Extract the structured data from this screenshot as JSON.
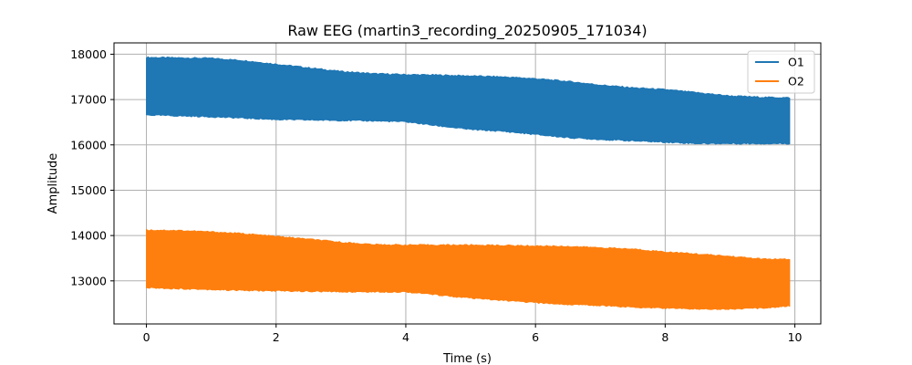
{
  "chart_data": {
    "type": "area",
    "title": "Raw EEG (martin3_recording_20250905_171034)",
    "xlabel": "Time (s)",
    "ylabel": "Amplitude",
    "xlim": [
      -0.5,
      10.4
    ],
    "ylim": [
      12050,
      18250
    ],
    "xticks": [
      0,
      2,
      4,
      6,
      8,
      10
    ],
    "yticks": [
      13000,
      14000,
      15000,
      16000,
      17000,
      18000
    ],
    "grid": true,
    "legend_position": "top-right",
    "series": [
      {
        "name": "O1",
        "color": "#1f77b4",
        "x": [
          0,
          0.5,
          1,
          1.5,
          2,
          2.5,
          3,
          3.5,
          4,
          4.5,
          5,
          5.5,
          6,
          6.5,
          7,
          7.5,
          8,
          8.5,
          9,
          9.5,
          9.92
        ],
        "upper": [
          17930,
          17920,
          17910,
          17860,
          17780,
          17700,
          17620,
          17570,
          17550,
          17540,
          17520,
          17500,
          17460,
          17400,
          17320,
          17260,
          17220,
          17150,
          17080,
          17050,
          17040
        ],
        "lower": [
          16660,
          16640,
          16620,
          16590,
          16560,
          16550,
          16540,
          16530,
          16510,
          16420,
          16340,
          16300,
          16230,
          16160,
          16120,
          16090,
          16060,
          16030,
          16030,
          16030,
          16030
        ]
      },
      {
        "name": "O2",
        "color": "#ff7f0e",
        "x": [
          0,
          0.5,
          1,
          1.5,
          2,
          2.5,
          3,
          3.5,
          4,
          4.5,
          5,
          5.5,
          6,
          6.5,
          7,
          7.5,
          8,
          8.5,
          9,
          9.5,
          9.92
        ],
        "upper": [
          14120,
          14110,
          14080,
          14040,
          13980,
          13920,
          13850,
          13800,
          13790,
          13790,
          13790,
          13780,
          13770,
          13760,
          13730,
          13700,
          13640,
          13590,
          13540,
          13480,
          13470
        ],
        "lower": [
          12850,
          12830,
          12810,
          12790,
          12780,
          12770,
          12760,
          12760,
          12760,
          12690,
          12620,
          12570,
          12520,
          12480,
          12460,
          12420,
          12400,
          12380,
          12380,
          12400,
          12450
        ]
      }
    ]
  }
}
